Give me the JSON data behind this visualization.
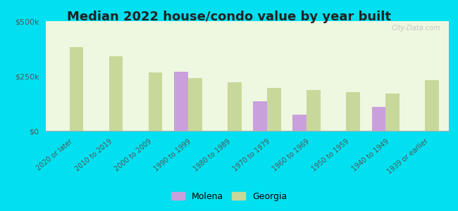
{
  "title": "Median 2022 house/condo value by year built",
  "categories": [
    "2020 or later",
    "2010 to 2019",
    "2000 to 2009",
    "1990 to 1999",
    "1980 to 1989",
    "1970 to 1979",
    "1960 to 1969",
    "1950 to 1959",
    "1940 to 1949",
    "1939 or earlier"
  ],
  "molena": [
    null,
    null,
    null,
    270000,
    null,
    135000,
    75000,
    null,
    110000,
    null
  ],
  "georgia": [
    380000,
    340000,
    265000,
    240000,
    220000,
    195000,
    185000,
    175000,
    170000,
    230000
  ],
  "molena_color": "#c9a0dc",
  "georgia_color": "#c8d89a",
  "background_outer": "#00e0f0",
  "background_inner_top": "#e8f5e0",
  "background_inner_bottom": "#f8fff0",
  "yticks": [
    0,
    250000,
    500000
  ],
  "ytick_labels": [
    "$0",
    "$250k",
    "$500k"
  ],
  "ymax": 500000,
  "bar_width": 0.35,
  "title_fontsize": 13,
  "legend_fontsize": 9,
  "watermark": "City-Data.com"
}
